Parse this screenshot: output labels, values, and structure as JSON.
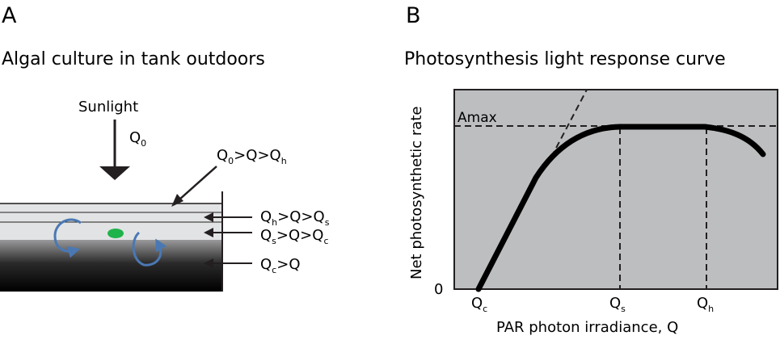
{
  "panel_a": {
    "letter": "A",
    "title": "Algal culture in tank outdoors",
    "sunlight_label": "Sunlight",
    "incident": {
      "base": "Q",
      "sub": "0"
    },
    "relations": {
      "surface": [
        {
          "b": "Q",
          "s": "0"
        },
        {
          "t": ">"
        },
        {
          "b": "Q"
        },
        {
          "t": ">"
        },
        {
          "b": "Q",
          "s": "h"
        }
      ],
      "upper": [
        {
          "b": "Q",
          "s": "h"
        },
        {
          "t": ">"
        },
        {
          "b": "Q"
        },
        {
          "t": ">"
        },
        {
          "b": "Q",
          "s": "s"
        }
      ],
      "middle": [
        {
          "b": "Q",
          "s": "s"
        },
        {
          "t": ">"
        },
        {
          "b": "Q"
        },
        {
          "t": ">"
        },
        {
          "b": "Q",
          "s": "c"
        }
      ],
      "bottom": [
        {
          "b": "Q",
          "s": "c"
        },
        {
          "t": ">"
        },
        {
          "b": "Q"
        }
      ]
    },
    "colors": {
      "cell": "#1fb34b",
      "circulation_arrow": "#4a78b3",
      "dark_water": "#000000",
      "light_water": "#d9d9db"
    }
  },
  "panel_b": {
    "letter": "B",
    "title": "Photosynthesis light response curve",
    "amax_label": "Amax",
    "y_axis_label": "Net photosynthetic rate",
    "y_zero_label": "0",
    "x_axis_label": "PAR photon irradiance, Q",
    "x_ticks": {
      "c": {
        "base": "Q",
        "sub": "c"
      },
      "s": {
        "base": "Q",
        "sub": "s"
      },
      "h": {
        "base": "Q",
        "sub": "h"
      }
    },
    "colors": {
      "plot_background": "#bcbec0",
      "curve": "#000000"
    }
  }
}
